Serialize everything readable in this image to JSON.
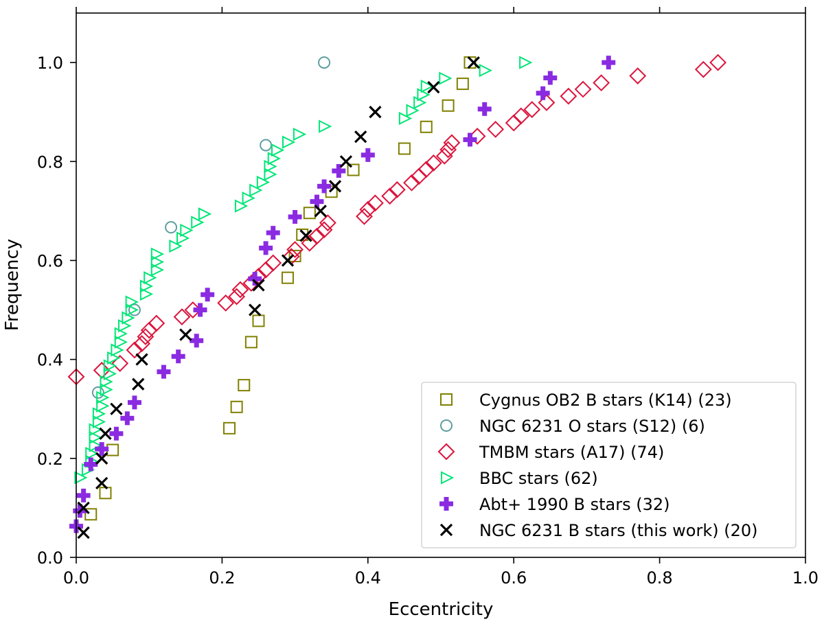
{
  "chart_data": {
    "type": "scatter",
    "title": "",
    "xlabel": "Eccentricity",
    "ylabel": "Frequency",
    "xlim": [
      0.0,
      1.0
    ],
    "ylim": [
      0.0,
      1.1
    ],
    "xticks": [
      "0.0",
      "0.2",
      "0.4",
      "0.6",
      "0.8",
      "1.0"
    ],
    "yticks": [
      "0.0",
      "0.2",
      "0.4",
      "0.6",
      "0.8",
      "1.0"
    ],
    "xtick_values": [
      0.0,
      0.2,
      0.4,
      0.6,
      0.8,
      1.0
    ],
    "ytick_values": [
      0.0,
      0.2,
      0.4,
      0.6,
      0.8,
      1.0
    ],
    "legend_position": "lower-right",
    "grid": false,
    "series": [
      {
        "name": "Cygnus OB2 B stars (K14) (23)",
        "marker": "square",
        "color": "#808000",
        "points": [
          [
            0.02,
            0.087
          ],
          [
            0.04,
            0.13
          ],
          [
            0.05,
            0.217
          ],
          [
            0.21,
            0.261
          ],
          [
            0.22,
            0.304
          ],
          [
            0.23,
            0.348
          ],
          [
            0.24,
            0.435
          ],
          [
            0.25,
            0.478
          ],
          [
            0.29,
            0.565
          ],
          [
            0.3,
            0.609
          ],
          [
            0.31,
            0.652
          ],
          [
            0.32,
            0.696
          ],
          [
            0.35,
            0.739
          ],
          [
            0.38,
            0.783
          ],
          [
            0.45,
            0.826
          ],
          [
            0.48,
            0.87
          ],
          [
            0.51,
            0.913
          ],
          [
            0.53,
            0.957
          ],
          [
            0.54,
            1.0
          ]
        ]
      },
      {
        "name": "NGC 6231 O stars (S12) (6)",
        "marker": "circle",
        "color": "#5f9ea0",
        "points": [
          [
            0.03,
            0.333
          ],
          [
            0.08,
            0.5
          ],
          [
            0.13,
            0.667
          ],
          [
            0.26,
            0.833
          ],
          [
            0.34,
            1.0
          ]
        ]
      },
      {
        "name": "TMBM stars (A17) (74)",
        "marker": "diamond",
        "color": "#dc143c",
        "points": [
          [
            0.0,
            0.365
          ],
          [
            0.035,
            0.378
          ],
          [
            0.06,
            0.392
          ],
          [
            0.08,
            0.419
          ],
          [
            0.09,
            0.432
          ],
          [
            0.095,
            0.446
          ],
          [
            0.1,
            0.459
          ],
          [
            0.11,
            0.473
          ],
          [
            0.145,
            0.486
          ],
          [
            0.16,
            0.5
          ],
          [
            0.205,
            0.514
          ],
          [
            0.22,
            0.527
          ],
          [
            0.225,
            0.541
          ],
          [
            0.24,
            0.554
          ],
          [
            0.25,
            0.568
          ],
          [
            0.26,
            0.581
          ],
          [
            0.27,
            0.595
          ],
          [
            0.295,
            0.608
          ],
          [
            0.3,
            0.622
          ],
          [
            0.32,
            0.635
          ],
          [
            0.33,
            0.649
          ],
          [
            0.34,
            0.662
          ],
          [
            0.345,
            0.676
          ],
          [
            0.395,
            0.689
          ],
          [
            0.4,
            0.703
          ],
          [
            0.41,
            0.716
          ],
          [
            0.43,
            0.73
          ],
          [
            0.44,
            0.743
          ],
          [
            0.46,
            0.757
          ],
          [
            0.47,
            0.77
          ],
          [
            0.48,
            0.784
          ],
          [
            0.49,
            0.797
          ],
          [
            0.505,
            0.811
          ],
          [
            0.51,
            0.824
          ],
          [
            0.515,
            0.838
          ],
          [
            0.55,
            0.851
          ],
          [
            0.575,
            0.865
          ],
          [
            0.6,
            0.878
          ],
          [
            0.61,
            0.892
          ],
          [
            0.625,
            0.905
          ],
          [
            0.645,
            0.919
          ],
          [
            0.675,
            0.932
          ],
          [
            0.695,
            0.946
          ],
          [
            0.72,
            0.959
          ],
          [
            0.77,
            0.973
          ],
          [
            0.86,
            0.986
          ],
          [
            0.88,
            1.0
          ]
        ]
      },
      {
        "name": "BBC stars (62)",
        "marker": "triangle-right",
        "color": "#00e676",
        "points": [
          [
            0.005,
            0.161
          ],
          [
            0.015,
            0.177
          ],
          [
            0.02,
            0.194
          ],
          [
            0.02,
            0.21
          ],
          [
            0.025,
            0.226
          ],
          [
            0.025,
            0.242
          ],
          [
            0.025,
            0.258
          ],
          [
            0.03,
            0.274
          ],
          [
            0.03,
            0.29
          ],
          [
            0.035,
            0.306
          ],
          [
            0.035,
            0.323
          ],
          [
            0.04,
            0.339
          ],
          [
            0.04,
            0.355
          ],
          [
            0.045,
            0.371
          ],
          [
            0.045,
            0.387
          ],
          [
            0.05,
            0.403
          ],
          [
            0.055,
            0.419
          ],
          [
            0.06,
            0.435
          ],
          [
            0.06,
            0.452
          ],
          [
            0.065,
            0.468
          ],
          [
            0.07,
            0.484
          ],
          [
            0.075,
            0.5
          ],
          [
            0.075,
            0.516
          ],
          [
            0.095,
            0.532
          ],
          [
            0.095,
            0.548
          ],
          [
            0.1,
            0.565
          ],
          [
            0.11,
            0.581
          ],
          [
            0.11,
            0.597
          ],
          [
            0.11,
            0.613
          ],
          [
            0.135,
            0.629
          ],
          [
            0.145,
            0.645
          ],
          [
            0.15,
            0.661
          ],
          [
            0.165,
            0.677
          ],
          [
            0.175,
            0.694
          ],
          [
            0.225,
            0.71
          ],
          [
            0.235,
            0.726
          ],
          [
            0.245,
            0.742
          ],
          [
            0.255,
            0.758
          ],
          [
            0.265,
            0.774
          ],
          [
            0.265,
            0.79
          ],
          [
            0.27,
            0.806
          ],
          [
            0.275,
            0.823
          ],
          [
            0.29,
            0.839
          ],
          [
            0.305,
            0.855
          ],
          [
            0.34,
            0.871
          ],
          [
            0.45,
            0.887
          ],
          [
            0.46,
            0.903
          ],
          [
            0.47,
            0.919
          ],
          [
            0.475,
            0.935
          ],
          [
            0.48,
            0.952
          ],
          [
            0.505,
            0.968
          ],
          [
            0.56,
            0.984
          ],
          [
            0.615,
            1.0
          ]
        ]
      },
      {
        "name": "Abt+ 1990 B stars (32)",
        "marker": "plus",
        "color": "#8a2be2",
        "points": [
          [
            0.0,
            0.063
          ],
          [
            0.005,
            0.094
          ],
          [
            0.01,
            0.125
          ],
          [
            0.02,
            0.188
          ],
          [
            0.035,
            0.219
          ],
          [
            0.055,
            0.25
          ],
          [
            0.07,
            0.281
          ],
          [
            0.08,
            0.313
          ],
          [
            0.12,
            0.375
          ],
          [
            0.14,
            0.406
          ],
          [
            0.165,
            0.438
          ],
          [
            0.17,
            0.5
          ],
          [
            0.18,
            0.531
          ],
          [
            0.245,
            0.563
          ],
          [
            0.26,
            0.625
          ],
          [
            0.27,
            0.656
          ],
          [
            0.3,
            0.688
          ],
          [
            0.33,
            0.719
          ],
          [
            0.34,
            0.75
          ],
          [
            0.36,
            0.781
          ],
          [
            0.4,
            0.813
          ],
          [
            0.54,
            0.844
          ],
          [
            0.56,
            0.906
          ],
          [
            0.64,
            0.938
          ],
          [
            0.65,
            0.969
          ],
          [
            0.73,
            1.0
          ]
        ]
      },
      {
        "name": "NGC 6231 B stars (this work) (20)",
        "marker": "x",
        "color": "#000000",
        "points": [
          [
            0.01,
            0.05
          ],
          [
            0.01,
            0.1
          ],
          [
            0.035,
            0.15
          ],
          [
            0.035,
            0.2
          ],
          [
            0.04,
            0.25
          ],
          [
            0.055,
            0.3
          ],
          [
            0.085,
            0.35
          ],
          [
            0.09,
            0.4
          ],
          [
            0.15,
            0.45
          ],
          [
            0.245,
            0.5
          ],
          [
            0.25,
            0.55
          ],
          [
            0.29,
            0.6
          ],
          [
            0.315,
            0.65
          ],
          [
            0.335,
            0.7
          ],
          [
            0.355,
            0.75
          ],
          [
            0.37,
            0.8
          ],
          [
            0.39,
            0.85
          ],
          [
            0.41,
            0.9
          ],
          [
            0.49,
            0.95
          ],
          [
            0.545,
            1.0
          ]
        ]
      }
    ]
  }
}
